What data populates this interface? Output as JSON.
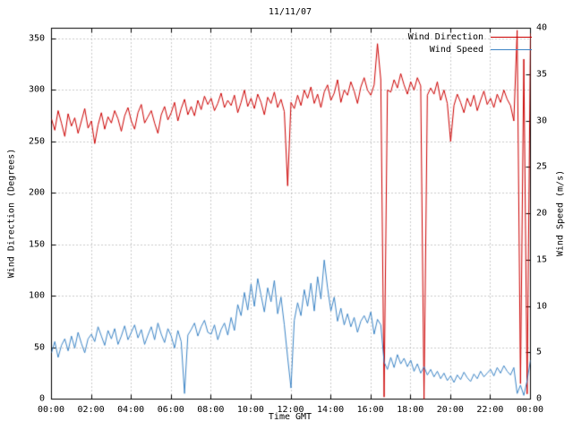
{
  "chart_data": {
    "type": "line",
    "title": "11/11/07",
    "xlabel": "Time GMT",
    "ylabel_left": "Wind Direction (Degrees)",
    "ylabel_right": "Wind Speed (m/s)",
    "grid": true,
    "legend_position": "top-right-inside",
    "x_tick_labels": [
      "00:00",
      "02:00",
      "04:00",
      "06:00",
      "08:00",
      "10:00",
      "12:00",
      "14:00",
      "16:00",
      "18:00",
      "20:00",
      "22:00",
      "00:00"
    ],
    "x_range_minutes": [
      0,
      1440
    ],
    "ylim_left": [
      0,
      360
    ],
    "yticks_left": [
      0,
      50,
      100,
      150,
      200,
      250,
      300,
      350
    ],
    "ylim_right": [
      0,
      40
    ],
    "yticks_right": [
      0,
      5,
      10,
      15,
      20,
      25,
      30,
      35,
      40
    ],
    "colors": {
      "wind_direction": "#cc0000",
      "wind_speed": "#3d85c6",
      "grid": "#999999",
      "frame": "#000000"
    },
    "legend": [
      {
        "name": "Wind Direction",
        "color": "#cc0000",
        "axis": "left"
      },
      {
        "name": "Wind Speed",
        "color": "#3d85c6",
        "axis": "right"
      }
    ],
    "step_minutes": 10,
    "series": [
      {
        "name": "Wind Direction",
        "axis": "left",
        "color": "#cc0000",
        "values": [
          272,
          261,
          280,
          268,
          255,
          277,
          265,
          273,
          258,
          270,
          282,
          263,
          270,
          248,
          266,
          278,
          262,
          274,
          268,
          280,
          272,
          260,
          275,
          283,
          270,
          262,
          278,
          286,
          268,
          274,
          280,
          268,
          258,
          276,
          284,
          271,
          278,
          288,
          270,
          282,
          291,
          276,
          284,
          275,
          290,
          281,
          294,
          286,
          292,
          280,
          287,
          297,
          283,
          290,
          285,
          295,
          278,
          288,
          300,
          284,
          292,
          282,
          296,
          288,
          276,
          293,
          287,
          298,
          283,
          291,
          279,
          207,
          288,
          282,
          295,
          285,
          300,
          292,
          303,
          287,
          296,
          283,
          298,
          305,
          290,
          297,
          310,
          288,
          300,
          295,
          308,
          299,
          287,
          303,
          312,
          300,
          295,
          305,
          345,
          310,
          2,
          300,
          298,
          310,
          302,
          316,
          305,
          296,
          308,
          300,
          312,
          304,
          0,
          295,
          302,
          296,
          308,
          290,
          300,
          287,
          250,
          285,
          296,
          288,
          278,
          292,
          284,
          295,
          280,
          290,
          299,
          286,
          292,
          283,
          296,
          288,
          300,
          291,
          285,
          270,
          358,
          15,
          330,
          5,
          355
        ]
      },
      {
        "name": "Wind Speed",
        "axis": "right",
        "color": "#3d85c6",
        "values": [
          5.0,
          6.2,
          4.5,
          5.8,
          6.5,
          5.2,
          6.8,
          5.5,
          7.2,
          6.0,
          5.0,
          6.5,
          7.0,
          6.2,
          7.8,
          6.8,
          5.8,
          7.4,
          6.5,
          7.6,
          5.9,
          6.8,
          7.9,
          6.4,
          7.2,
          8.0,
          6.6,
          7.5,
          5.9,
          6.9,
          7.8,
          6.4,
          8.2,
          7.0,
          6.1,
          7.6,
          6.8,
          5.5,
          7.4,
          6.2,
          0.6,
          6.9,
          7.5,
          8.2,
          6.8,
          7.8,
          8.5,
          7.2,
          7.0,
          8.0,
          6.4,
          7.5,
          8.2,
          6.9,
          8.8,
          7.4,
          10.2,
          9.0,
          11.5,
          9.6,
          12.4,
          10.0,
          13.0,
          11.2,
          9.4,
          12.0,
          10.5,
          12.8,
          9.2,
          11.0,
          8.0,
          4.5,
          1.2,
          8.5,
          10.4,
          9.0,
          11.8,
          10.0,
          12.5,
          9.5,
          13.2,
          10.8,
          15.0,
          12.0,
          9.5,
          11.0,
          8.4,
          9.8,
          8.0,
          9.2,
          7.8,
          8.8,
          7.2,
          8.4,
          9.0,
          8.2,
          9.4,
          7.0,
          8.6,
          8.0,
          4.0,
          3.2,
          4.5,
          3.4,
          4.8,
          3.8,
          4.4,
          3.5,
          4.2,
          3.0,
          3.8,
          2.8,
          3.5,
          2.6,
          3.2,
          2.4,
          3.0,
          2.2,
          2.8,
          2.0,
          2.5,
          1.8,
          2.6,
          2.1,
          2.9,
          2.3,
          1.9,
          2.7,
          2.2,
          3.0,
          2.4,
          2.8,
          3.2,
          2.5,
          3.4,
          2.8,
          3.6,
          3.0,
          2.6,
          3.4,
          0.6,
          1.5,
          0.4,
          2.0,
          4.2
        ]
      }
    ]
  }
}
